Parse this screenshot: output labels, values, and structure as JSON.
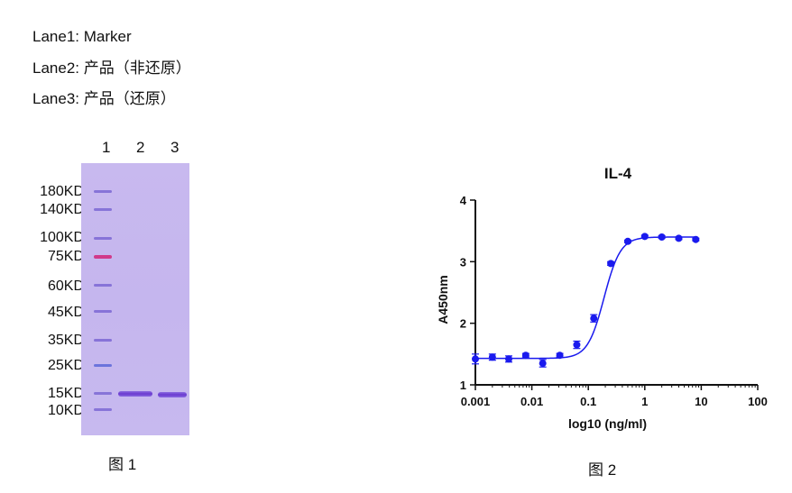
{
  "legend": {
    "lane1": "Lane1: Marker",
    "lane2": "Lane2: 产品（非还原）",
    "lane3": "Lane3: 产品（还原）"
  },
  "gel": {
    "lane_numbers": [
      "1",
      "2",
      "3"
    ],
    "markers": [
      "180KD",
      "140KD",
      "100KD",
      "75KD",
      "60KD",
      "45KD",
      "35KD",
      "25KD",
      "15KD",
      "10KD"
    ],
    "colors": {
      "background": "#c6b7ee",
      "band": "#6a3ad0",
      "marker_75kd": "#d13a8a"
    },
    "caption": "图 1"
  },
  "figure2_caption": "图 2",
  "chart_data": {
    "type": "scatter",
    "title": "IL-4",
    "xlabel": "log10 (ng/ml)",
    "ylabel": "A450nm",
    "x_scale": "log",
    "xlim": [
      0.001,
      100
    ],
    "ylim": [
      1,
      4
    ],
    "x_ticks": [
      "0.001",
      "0.01",
      "0.1",
      "1",
      "10",
      "100"
    ],
    "y_ticks": [
      "1",
      "2",
      "3",
      "4"
    ],
    "color": "#1a1aee",
    "series": [
      {
        "x": [
          0.001,
          0.002,
          0.0039,
          0.0078,
          0.0156,
          0.03125,
          0.0625,
          0.125,
          0.25,
          0.5,
          1,
          2,
          4,
          8
        ],
        "y": [
          1.42,
          1.45,
          1.42,
          1.48,
          1.35,
          1.48,
          1.65,
          2.08,
          2.97,
          3.33,
          3.41,
          3.4,
          3.38,
          3.36
        ],
        "err": [
          0.08,
          0.05,
          0.05,
          0.03,
          0.06,
          0.03,
          0.06,
          0.06,
          0.03,
          0.02,
          0.02,
          0.02,
          0.02,
          0.02
        ]
      }
    ],
    "fit": {
      "bottom": 1.43,
      "top": 3.4,
      "ec50": 0.19,
      "hill": 3.0
    }
  }
}
